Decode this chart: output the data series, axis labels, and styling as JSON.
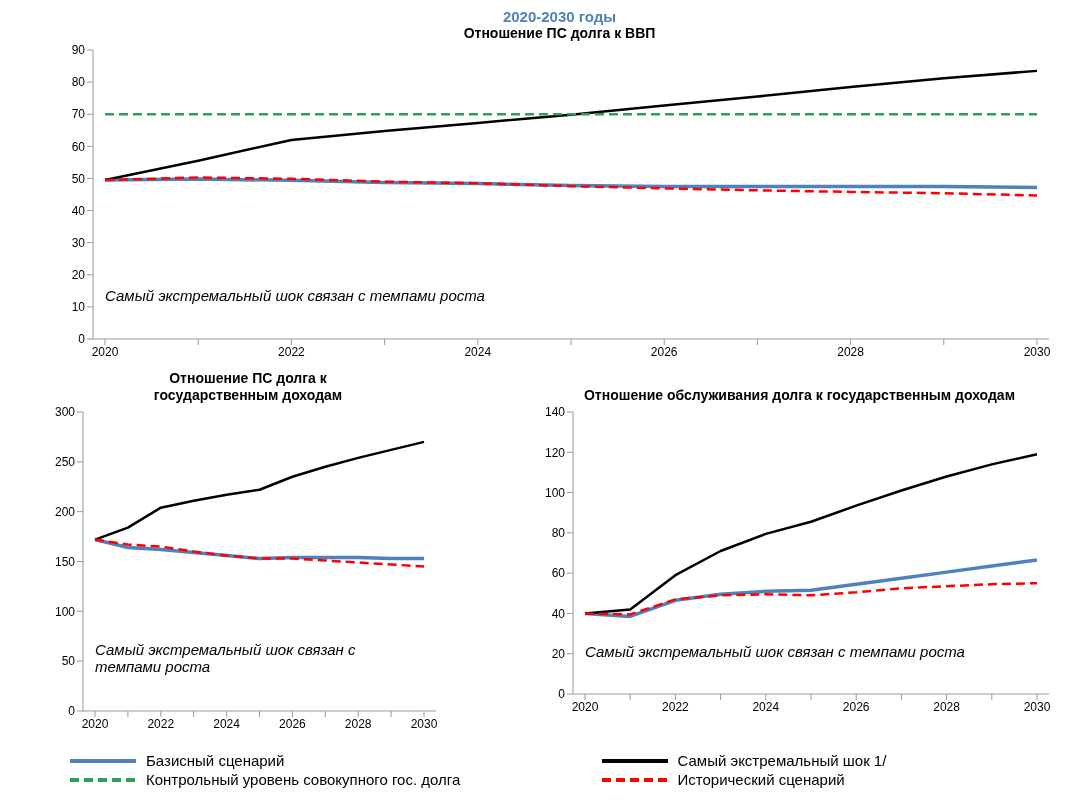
{
  "chart_data": [
    {
      "type": "line",
      "subtitle": "2020-2030 годы",
      "title": "Отношение ПС долга к ВВП",
      "categories": [
        "2020",
        null,
        "2022",
        null,
        "2024",
        null,
        "2026",
        null,
        "2028",
        null,
        "2030"
      ],
      "ylim": [
        0,
        90
      ],
      "yticks": [
        0,
        10,
        20,
        30,
        40,
        50,
        60,
        70,
        80,
        90
      ],
      "legend": "bottom",
      "annotations": [
        "Самый экстремальный  шок связан с темпами роста"
      ],
      "series": [
        {
          "name": "Базисный сценарий",
          "color": "#4f81bd",
          "line_style": "solid",
          "values": [
            49.5,
            49.8,
            49.4,
            48.7,
            48.4,
            47.8,
            47.5,
            47.5,
            47.5,
            47.5,
            47.2
          ]
        },
        {
          "name": "Самый экстремальный шок 1/",
          "color": "#000000",
          "line_style": "solid",
          "values": [
            49.5,
            55.5,
            62,
            64.8,
            67.3,
            69.8,
            72.7,
            75.5,
            78.5,
            81.2,
            83.5
          ]
        },
        {
          "name": "Контрольный уровень совокупного гос. долга",
          "color": "#2e9e5b",
          "line_style": "dashed",
          "values": [
            70,
            70,
            70,
            70,
            70,
            70,
            70,
            70,
            70,
            70,
            70
          ]
        },
        {
          "name": "Исторический сценарий",
          "color": "#ff0000",
          "line_style": "dashed",
          "values": [
            49.5,
            50.3,
            49.9,
            49,
            48.5,
            47.6,
            46.9,
            46.3,
            45.8,
            45.4,
            44.7
          ]
        }
      ]
    },
    {
      "type": "line",
      "title": "Отношение ПС долга к государственным доходам",
      "categories": [
        "2020",
        null,
        "2022",
        null,
        "2024",
        null,
        "2026",
        null,
        "2028",
        null,
        "2030"
      ],
      "ylim": [
        0,
        300
      ],
      "yticks": [
        0,
        50,
        100,
        150,
        200,
        250,
        300
      ],
      "annotations": [
        "Самый экстремальный  шок связан с темпами роста"
      ],
      "series": [
        {
          "color": "#4f81bd",
          "line_style": "solid",
          "values": [
            172,
            164,
            162,
            159,
            156,
            153,
            154,
            154,
            154,
            153,
            153
          ]
        },
        {
          "color": "#000000",
          "line_style": "solid",
          "values": [
            172,
            184,
            204,
            211,
            217,
            222,
            235,
            245,
            254,
            262,
            270
          ]
        },
        {
          "color": "#ff0000",
          "line_style": "dashed",
          "values": [
            172,
            167,
            165,
            160,
            156,
            153,
            153,
            151,
            149,
            147,
            145
          ]
        }
      ]
    },
    {
      "type": "line",
      "title": "Отношение обслуживания долга к государственным доходам",
      "categories": [
        "2020",
        null,
        "2022",
        null,
        "2024",
        null,
        "2026",
        null,
        "2028",
        null,
        "2030"
      ],
      "ylim": [
        0,
        140
      ],
      "yticks": [
        0,
        20,
        40,
        60,
        80,
        100,
        120,
        140
      ],
      "annotations": [
        "Самый экстремальный  шок связан с темпами роста"
      ],
      "series": [
        {
          "color": "#4f81bd",
          "line_style": "solid",
          "values": [
            40,
            38.5,
            46.5,
            49.5,
            51,
            51.5,
            54.5,
            57.5,
            60.5,
            63.5,
            66.5
          ]
        },
        {
          "color": "#000000",
          "line_style": "solid",
          "values": [
            40,
            42,
            59,
            71,
            79.5,
            85.5,
            93.5,
            101,
            108,
            114,
            119
          ]
        },
        {
          "color": "#ff0000",
          "line_style": "dashed",
          "values": [
            40,
            39.5,
            47,
            49,
            49.5,
            49,
            50.5,
            52.5,
            53.5,
            54.5,
            55
          ]
        }
      ]
    }
  ]
}
